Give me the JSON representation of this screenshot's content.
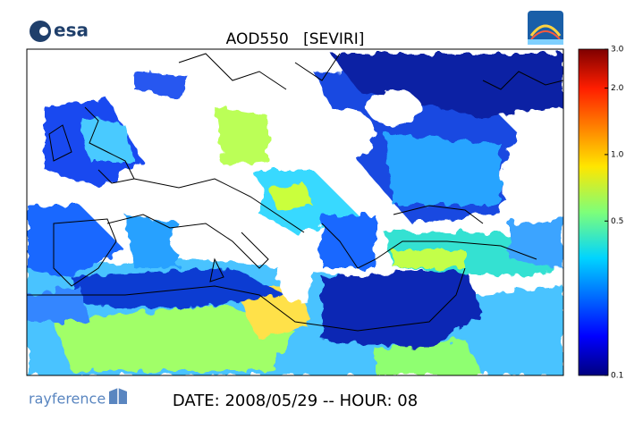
{
  "header": {
    "logo": "esa",
    "title": "AOD550   [SEVIRI]"
  },
  "colorbar": {
    "scale": "log",
    "lim": [
      0.1,
      3
    ],
    "ticks": [
      {
        "value": 3,
        "label": "3.0"
      },
      {
        "value": 2,
        "label": "2.0"
      },
      {
        "value": 1,
        "label": "1.0"
      },
      0.5,
      0.1
    ]
  },
  "footer": {
    "logo": "rayference",
    "date": "DATE: 2008/05/29 -- HOUR: 08"
  }
}
